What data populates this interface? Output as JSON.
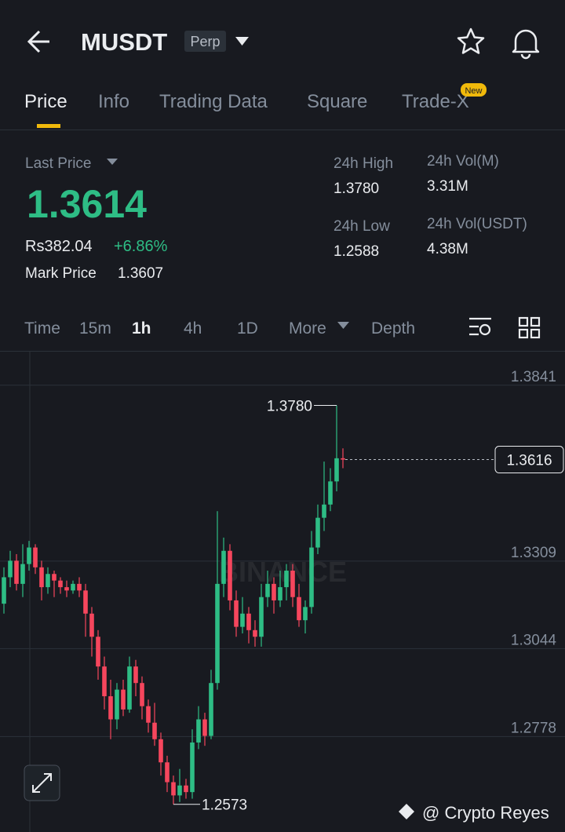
{
  "header": {
    "symbol": "MUSDT",
    "badge": "Perp"
  },
  "tabs": [
    "Price",
    "Info",
    "Trading Data",
    "Square",
    "Trade-X"
  ],
  "tab_badge": "New",
  "stats": {
    "last_price_label": "Last Price",
    "last_price": "1.3614",
    "local_price": "Rs382.04",
    "change": "+6.86%",
    "mark_price_label": "Mark Price",
    "mark_price": "1.3607",
    "high_label": "24h High",
    "high": "1.3780",
    "low_label": "24h Low",
    "low": "1.2588",
    "vol_label": "24h Vol(M)",
    "vol": "3.31M",
    "vol_usdt_label": "24h Vol(USDT)",
    "vol_usdt": "4.38M"
  },
  "intervals": [
    "Time",
    "15m",
    "1h",
    "4h",
    "1D",
    "More",
    "Depth"
  ],
  "chart_data": {
    "type": "candlestick",
    "ylim": [
      1.2513,
      1.3945
    ],
    "yticks": [
      1.3841,
      1.3309,
      1.3044,
      1.2778
    ],
    "grid": true,
    "up_color": "#2ebd85",
    "down_color": "#f6465d",
    "watermark": "BINANCE",
    "high_marker": {
      "value": 1.378,
      "label": "1.3780"
    },
    "low_marker": {
      "value": 1.2573,
      "label": "1.2573"
    },
    "current_price": 1.3616,
    "candles": [
      {
        "o": 1.318,
        "h": 1.329,
        "l": 1.315,
        "c": 1.326
      },
      {
        "o": 1.326,
        "h": 1.334,
        "l": 1.323,
        "c": 1.331
      },
      {
        "o": 1.331,
        "h": 1.333,
        "l": 1.322,
        "c": 1.324
      },
      {
        "o": 1.324,
        "h": 1.336,
        "l": 1.32,
        "c": 1.33
      },
      {
        "o": 1.33,
        "h": 1.337,
        "l": 1.328,
        "c": 1.335
      },
      {
        "o": 1.335,
        "h": 1.336,
        "l": 1.327,
        "c": 1.329
      },
      {
        "o": 1.329,
        "h": 1.331,
        "l": 1.319,
        "c": 1.323
      },
      {
        "o": 1.323,
        "h": 1.329,
        "l": 1.321,
        "c": 1.327
      },
      {
        "o": 1.327,
        "h": 1.328,
        "l": 1.32,
        "c": 1.325
      },
      {
        "o": 1.325,
        "h": 1.326,
        "l": 1.321,
        "c": 1.323
      },
      {
        "o": 1.323,
        "h": 1.325,
        "l": 1.32,
        "c": 1.322
      },
      {
        "o": 1.322,
        "h": 1.325,
        "l": 1.321,
        "c": 1.324
      },
      {
        "o": 1.324,
        "h": 1.326,
        "l": 1.32,
        "c": 1.322
      },
      {
        "o": 1.322,
        "h": 1.324,
        "l": 1.308,
        "c": 1.315
      },
      {
        "o": 1.315,
        "h": 1.317,
        "l": 1.302,
        "c": 1.308
      },
      {
        "o": 1.308,
        "h": 1.31,
        "l": 1.295,
        "c": 1.299
      },
      {
        "o": 1.299,
        "h": 1.302,
        "l": 1.286,
        "c": 1.29
      },
      {
        "o": 1.29,
        "h": 1.295,
        "l": 1.277,
        "c": 1.283
      },
      {
        "o": 1.283,
        "h": 1.294,
        "l": 1.28,
        "c": 1.292
      },
      {
        "o": 1.292,
        "h": 1.295,
        "l": 1.284,
        "c": 1.286
      },
      {
        "o": 1.286,
        "h": 1.302,
        "l": 1.285,
        "c": 1.299
      },
      {
        "o": 1.299,
        "h": 1.301,
        "l": 1.29,
        "c": 1.294
      },
      {
        "o": 1.294,
        "h": 1.296,
        "l": 1.283,
        "c": 1.287
      },
      {
        "o": 1.287,
        "h": 1.289,
        "l": 1.279,
        "c": 1.282
      },
      {
        "o": 1.282,
        "h": 1.288,
        "l": 1.275,
        "c": 1.277
      },
      {
        "o": 1.277,
        "h": 1.279,
        "l": 1.266,
        "c": 1.27
      },
      {
        "o": 1.27,
        "h": 1.272,
        "l": 1.261,
        "c": 1.264
      },
      {
        "o": 1.264,
        "h": 1.266,
        "l": 1.2573,
        "c": 1.26
      },
      {
        "o": 1.26,
        "h": 1.268,
        "l": 1.258,
        "c": 1.263
      },
      {
        "o": 1.263,
        "h": 1.265,
        "l": 1.259,
        "c": 1.261
      },
      {
        "o": 1.261,
        "h": 1.28,
        "l": 1.259,
        "c": 1.276
      },
      {
        "o": 1.276,
        "h": 1.287,
        "l": 1.274,
        "c": 1.283
      },
      {
        "o": 1.283,
        "h": 1.285,
        "l": 1.275,
        "c": 1.278
      },
      {
        "o": 1.278,
        "h": 1.298,
        "l": 1.277,
        "c": 1.294
      },
      {
        "o": 1.294,
        "h": 1.346,
        "l": 1.292,
        "c": 1.324
      },
      {
        "o": 1.324,
        "h": 1.338,
        "l": 1.32,
        "c": 1.334
      },
      {
        "o": 1.334,
        "h": 1.336,
        "l": 1.316,
        "c": 1.319
      },
      {
        "o": 1.319,
        "h": 1.322,
        "l": 1.308,
        "c": 1.311
      },
      {
        "o": 1.311,
        "h": 1.32,
        "l": 1.309,
        "c": 1.315
      },
      {
        "o": 1.315,
        "h": 1.317,
        "l": 1.306,
        "c": 1.31
      },
      {
        "o": 1.31,
        "h": 1.313,
        "l": 1.305,
        "c": 1.308
      },
      {
        "o": 1.308,
        "h": 1.324,
        "l": 1.305,
        "c": 1.32
      },
      {
        "o": 1.32,
        "h": 1.328,
        "l": 1.317,
        "c": 1.324
      },
      {
        "o": 1.324,
        "h": 1.326,
        "l": 1.315,
        "c": 1.319
      },
      {
        "o": 1.319,
        "h": 1.328,
        "l": 1.317,
        "c": 1.323
      },
      {
        "o": 1.323,
        "h": 1.33,
        "l": 1.319,
        "c": 1.328
      },
      {
        "o": 1.328,
        "h": 1.33,
        "l": 1.317,
        "c": 1.32
      },
      {
        "o": 1.32,
        "h": 1.324,
        "l": 1.311,
        "c": 1.313
      },
      {
        "o": 1.313,
        "h": 1.319,
        "l": 1.309,
        "c": 1.317
      },
      {
        "o": 1.317,
        "h": 1.34,
        "l": 1.315,
        "c": 1.335
      },
      {
        "o": 1.335,
        "h": 1.348,
        "l": 1.333,
        "c": 1.344
      },
      {
        "o": 1.344,
        "h": 1.361,
        "l": 1.34,
        "c": 1.348
      },
      {
        "o": 1.348,
        "h": 1.359,
        "l": 1.346,
        "c": 1.355
      },
      {
        "o": 1.355,
        "h": 1.378,
        "l": 1.352,
        "c": 1.362
      },
      {
        "o": 1.362,
        "h": 1.365,
        "l": 1.359,
        "c": 1.3616
      }
    ]
  },
  "credit": "@ Crypto Reyes"
}
